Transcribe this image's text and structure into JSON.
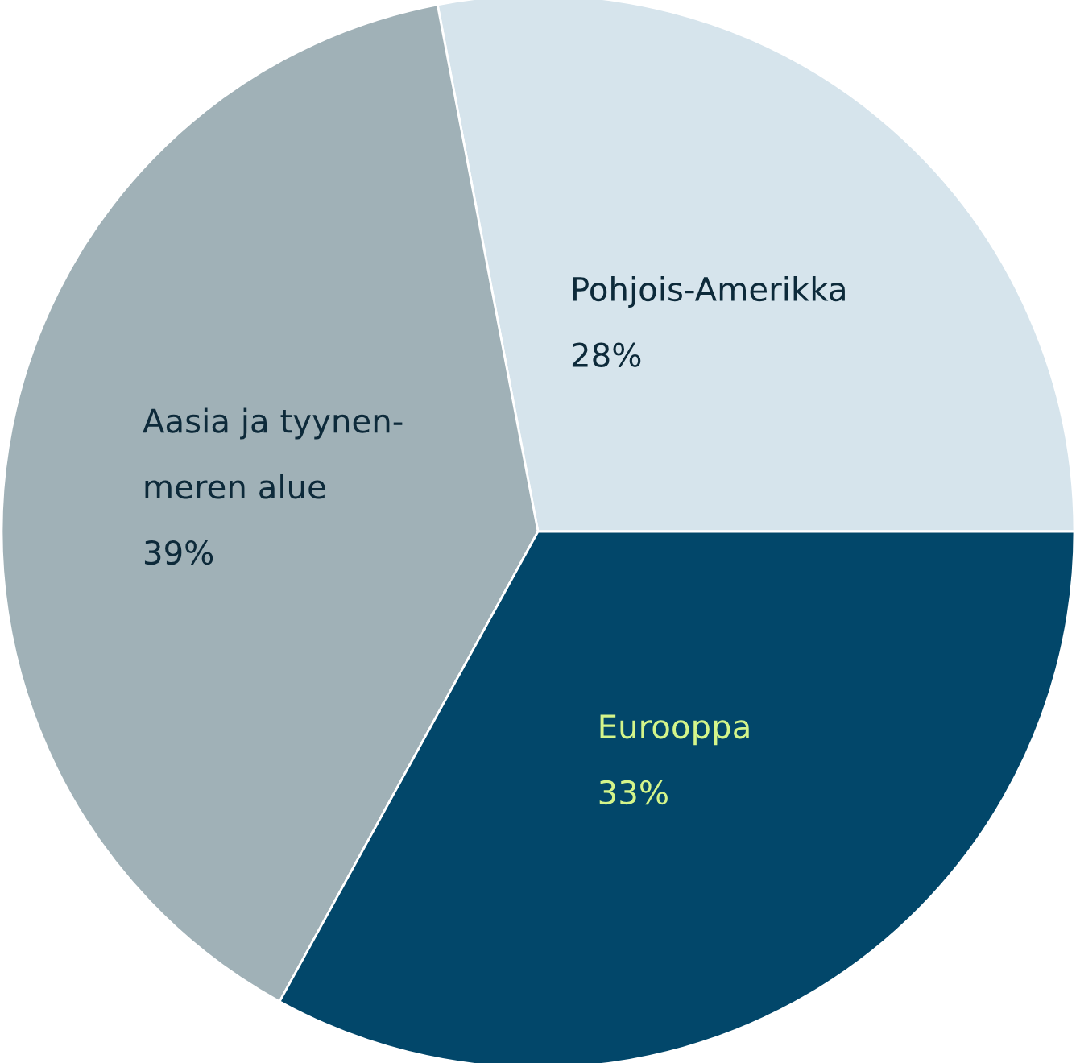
{
  "chart_data": {
    "type": "pie",
    "categories": [
      "Pohjois-Amerikka",
      "Aasia ja tyynen-\nmeren alue",
      "Eurooppa"
    ],
    "values": [
      28,
      39,
      33
    ],
    "value_labels": [
      "28%",
      "39%",
      "33%"
    ],
    "colors": [
      "#d6e4ec",
      "#a0b1b7",
      "#02476a"
    ]
  }
}
